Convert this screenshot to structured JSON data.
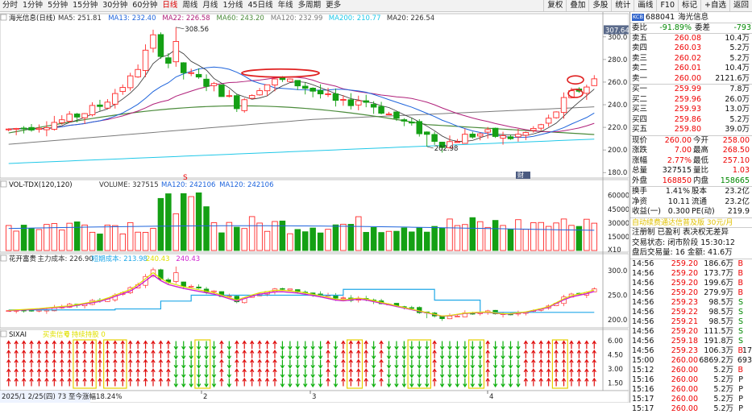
{
  "toolbar": {
    "periods": [
      "分时",
      "1分钟",
      "5分钟",
      "15分钟",
      "30分钟",
      "60分钟",
      "日线",
      "周线",
      "月线",
      "1分线",
      "45日线",
      "年线",
      "多周期",
      "更多"
    ],
    "active_period": "日线",
    "right_buttons": [
      "复权",
      "叠加",
      "多股",
      "统计",
      "画线",
      "F10",
      "标记",
      "+自选",
      "返回"
    ]
  },
  "colors": {
    "up": "#ff2a2a",
    "down": "#14a014",
    "ma5": "#333333",
    "ma13": "#1e64dc",
    "ma22": "#b0207a",
    "ma60": "#4b8b3b",
    "ma120": "#7a7a7a",
    "ma200": "#20c8e8",
    "bg": "#ffffff"
  },
  "main_panel": {
    "title": "海光信息(日线)",
    "indicators": [
      {
        "label": "MA5: 251.81",
        "color": "#333333"
      },
      {
        "label": "MA13: 232.40",
        "color": "#1e64dc"
      },
      {
        "label": "MA22: 226.58",
        "color": "#b0207a"
      },
      {
        "label": "MA60: 243.20",
        "color": "#4b8b3b"
      },
      {
        "label": "MA120: 232.99",
        "color": "#7a7a7a"
      },
      {
        "label": "MA200: 210.77",
        "color": "#20c8e8"
      },
      {
        "label": "MA20: 226.54",
        "color": "#333333"
      }
    ],
    "axis_ticks": [
      "300.0",
      "280.0",
      "260.0",
      "240.0",
      "220.0",
      "200.0",
      "180.0"
    ],
    "high_label": "308.56",
    "low_label": "202.98",
    "price_tag": "307.64",
    "fin_label": "财",
    "s_label": "S"
  },
  "volume_panel": {
    "title": "VOL-TDX(120,120)",
    "indicators": [
      {
        "label": "VOLUME: 327515",
        "color": "#333333"
      },
      {
        "label": "MA120: 242106",
        "color": "#1e64dc"
      },
      {
        "label": "MA120: 242106",
        "color": "#1e64dc"
      }
    ],
    "axis_ticks": [
      "60000",
      "45000",
      "30000",
      "15000",
      "X10"
    ]
  },
  "cost_panel": {
    "title": "花开富贵",
    "indicators": [
      {
        "label": "主力成本: 226.90",
        "color": "#333333"
      },
      {
        "label": "短期成本: 213.98",
        "color": "#20a8e8"
      },
      {
        "label": "240.43",
        "color": "#e0e000"
      },
      {
        "label": "240.43",
        "color": "#d020d0"
      }
    ],
    "axis_ticks": [
      "300.0",
      "250.0",
      "200.0"
    ]
  },
  "signal_panel": {
    "title": "SIXAI",
    "indicators": [
      {
        "label": "买卖信号",
        "color": "#e0e000"
      },
      {
        "label": "0 持续持股 0",
        "color": "#e0e000"
      }
    ],
    "axis_ticks": [
      "6.00",
      "4.50",
      "3.00",
      "1.50"
    ]
  },
  "bottom_bar": {
    "range_text": "2025/1 2/25(四) 73 至今涨幅18.24%",
    "month_labels": [
      "2",
      "3",
      "4"
    ],
    "x_ticks": [
      "2",
      "3",
      "4"
    ]
  },
  "quote": {
    "stock_code": "688041",
    "stock_name": "海光信息",
    "kcb_badge": "KCB",
    "webi": {
      "label": "委比",
      "value": "-91.89%",
      "label2": "委差",
      "value2": "-793"
    },
    "asks": [
      {
        "label": "卖五",
        "price": "260.08",
        "vol": "10.4万"
      },
      {
        "label": "卖四",
        "price": "260.03",
        "vol": "5.2万"
      },
      {
        "label": "卖三",
        "price": "260.02",
        "vol": "5.2万"
      },
      {
        "label": "卖二",
        "price": "260.01",
        "vol": "10.4万"
      },
      {
        "label": "卖一",
        "price": "260.00",
        "vol": "2121.6万"
      }
    ],
    "bids": [
      {
        "label": "买一",
        "price": "259.99",
        "vol": "7.8万"
      },
      {
        "label": "买二",
        "price": "259.96",
        "vol": "26.0万"
      },
      {
        "label": "买三",
        "price": "259.93",
        "vol": "13.0万"
      },
      {
        "label": "买四",
        "price": "259.86",
        "vol": "5.2万"
      },
      {
        "label": "买五",
        "price": "259.80",
        "vol": "39.0万"
      }
    ],
    "stats": [
      {
        "l1": "现价",
        "v1": "260.00",
        "c1": "red",
        "l2": "今开",
        "v2": "258.00",
        "c2": "red"
      },
      {
        "l1": "涨跌",
        "v1": "7.00",
        "c1": "red",
        "l2": "最高",
        "v2": "268.50",
        "c2": "red"
      },
      {
        "l1": "涨幅",
        "v1": "2.77%",
        "c1": "red",
        "l2": "最低",
        "v2": "257.10",
        "c2": "red"
      },
      {
        "l1": "总量",
        "v1": "327515",
        "c1": "blk",
        "l2": "量比",
        "v2": "1.03",
        "c2": "red"
      },
      {
        "l1": "外盘",
        "v1": "168850",
        "c1": "red",
        "l2": "内盘",
        "v2": "158665",
        "c2": "green"
      }
    ],
    "fund": [
      {
        "l1": "换手",
        "v1": "1.41%",
        "l2": "股本",
        "v2": "23.2亿"
      },
      {
        "l1": "净资",
        "v1": "10.11",
        "l2": "流通",
        "v2": "23.2亿"
      },
      {
        "l1": "收益(一)",
        "v1": "0.300",
        "l2": "PE(动)",
        "v2": "219.9"
      }
    ],
    "promo": "自动续费通达信普及版  30元/月",
    "notes": [
      "注册制 已盈利 表决权无差异",
      "交易状态: 闭市阶段 15:30:12",
      "盘后交易量: 16  金额: 41.6万"
    ],
    "ticks": [
      {
        "t": "14:56",
        "p": "259.20",
        "v": "186.6万",
        "s": "B"
      },
      {
        "t": "14:56",
        "p": "259.20",
        "v": "173.7万",
        "s": "B"
      },
      {
        "t": "14:56",
        "p": "259.20",
        "v": "199.6万",
        "s": "B"
      },
      {
        "t": "14:56",
        "p": "259.20",
        "v": "279.9万",
        "s": "B"
      },
      {
        "t": "14:56",
        "p": "259.23",
        "v": "98.5万",
        "s": "S"
      },
      {
        "t": "14:56",
        "p": "259.22",
        "v": "98.5万",
        "s": "S"
      },
      {
        "t": "14:56",
        "p": "259.21",
        "v": "98.5万",
        "s": "S"
      },
      {
        "t": "14:56",
        "p": "259.20",
        "v": "111.5万",
        "s": "S"
      },
      {
        "t": "14:56",
        "p": "259.18",
        "v": "191.8万",
        "s": "S"
      },
      {
        "t": "14:56",
        "p": "259.23",
        "v": "106.3万",
        "s": "B"
      },
      {
        "t": "15:00",
        "p": "260.00",
        "v": "6869.2万",
        "s": ""
      },
      {
        "t": "15:12",
        "p": "260.00",
        "v": "5.2万",
        "s": "B"
      },
      {
        "t": "15:16",
        "p": "260.00",
        "v": "5.2万",
        "s": "P"
      },
      {
        "t": "15:16",
        "p": "260.00",
        "v": "5.2万",
        "s": "P"
      },
      {
        "t": "15:17",
        "p": "260.00",
        "v": "5.2万",
        "s": "P"
      },
      {
        "t": "15:17",
        "p": "260.00",
        "v": "5.2万",
        "s": "P"
      }
    ],
    "tick_extra": {
      "15:00": "693",
      "14:56 259.23": "17"
    }
  }
}
